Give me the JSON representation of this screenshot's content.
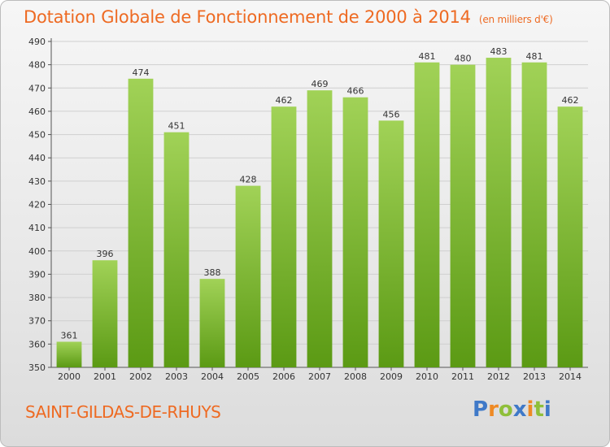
{
  "title": "Dotation Globale de Fonctionnement de 2000 à 2014",
  "subtitle": "(en milliers d'€)",
  "commune": "SAINT-GILDAS-DE-RHUYS",
  "logo": {
    "text": "Proxiti",
    "letters": [
      {
        "ch": "P",
        "color": "#3f79c8"
      },
      {
        "ch": "r",
        "color": "#ef8a24"
      },
      {
        "ch": "o",
        "color": "#8fbf3a"
      },
      {
        "ch": "x",
        "color": "#3f79c8"
      },
      {
        "ch": "i",
        "color": "#ef8a24"
      },
      {
        "ch": "t",
        "color": "#8fbf3a"
      },
      {
        "ch": "i",
        "color": "#3f79c8"
      }
    ]
  },
  "colors": {
    "bar_top": "#a1d257",
    "bar_bottom": "#5b9a14",
    "accent": "#ee6a22",
    "grid": "#cfcfcf"
  },
  "chart_data": {
    "type": "bar",
    "categories": [
      "2000",
      "2001",
      "2002",
      "2003",
      "2004",
      "2005",
      "2006",
      "2007",
      "2008",
      "2009",
      "2010",
      "2011",
      "2012",
      "2013",
      "2014"
    ],
    "values": [
      361,
      396,
      474,
      451,
      388,
      428,
      462,
      469,
      466,
      456,
      481,
      480,
      483,
      481,
      462
    ],
    "yticks": [
      350,
      360,
      370,
      380,
      390,
      400,
      410,
      420,
      430,
      440,
      450,
      460,
      470,
      480,
      490
    ],
    "ylim": [
      350,
      490
    ],
    "grid": true,
    "legend": "none"
  }
}
